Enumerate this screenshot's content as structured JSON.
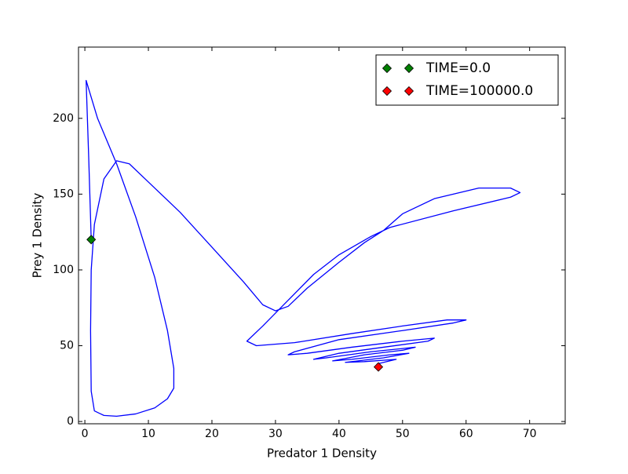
{
  "chart_data": {
    "type": "line",
    "xlabel": "Predator 1 Density",
    "ylabel": "Prey 1 Density",
    "xlim": [
      -1,
      75.6
    ],
    "ylim": [
      -1.5,
      247
    ],
    "xticks": [
      0,
      10,
      20,
      30,
      40,
      50,
      60,
      70
    ],
    "yticks": [
      0,
      50,
      100,
      150,
      200
    ],
    "legend": "upper right",
    "series": [
      {
        "color": "#0000ff",
        "x": [
          1,
          0.6,
          0.2,
          2,
          5,
          8,
          11,
          13,
          14,
          14,
          13,
          11,
          8,
          5,
          3,
          1.5,
          1,
          0.9,
          1,
          1.5,
          3,
          5,
          7,
          10,
          15,
          20,
          25,
          28,
          30,
          32,
          35,
          40,
          44,
          47,
          50,
          55,
          62,
          67,
          68.5,
          67,
          58,
          48,
          45,
          40,
          36,
          32,
          28,
          25.5,
          27,
          33,
          42,
          50,
          57,
          60,
          58,
          50,
          40,
          33,
          32,
          35,
          42,
          50,
          55,
          54,
          47,
          40,
          36,
          38,
          45,
          52,
          50,
          44,
          39,
          42,
          48,
          51,
          47,
          41,
          44,
          49,
          46,
          46.2
        ],
        "values": [
          120,
          175,
          225,
          200,
          170,
          135,
          95,
          60,
          35,
          22,
          15,
          9,
          5,
          3.5,
          4,
          7,
          20,
          60,
          100,
          130,
          160,
          172,
          170,
          158,
          138,
          115,
          92,
          77,
          73,
          76,
          88,
          105,
          118,
          126,
          137,
          147,
          154,
          154,
          151,
          148,
          139,
          128,
          122,
          110,
          97,
          80,
          63,
          53,
          50,
          52,
          58,
          63,
          67,
          67,
          65,
          60,
          54,
          46,
          44,
          45,
          49,
          53,
          55,
          53,
          49,
          45,
          41,
          42,
          46,
          49,
          47,
          44,
          40,
          41,
          44,
          45,
          42,
          39,
          39.5,
          41,
          38,
          36
        ]
      },
      {
        "name": "TIME=0.0",
        "color": "#008000",
        "marker": "D",
        "x": [
          1
        ],
        "values": [
          120
        ]
      },
      {
        "name": "TIME=100000.0",
        "color": "#ff0000",
        "marker": "D",
        "x": [
          46.2
        ],
        "values": [
          36
        ]
      }
    ]
  }
}
